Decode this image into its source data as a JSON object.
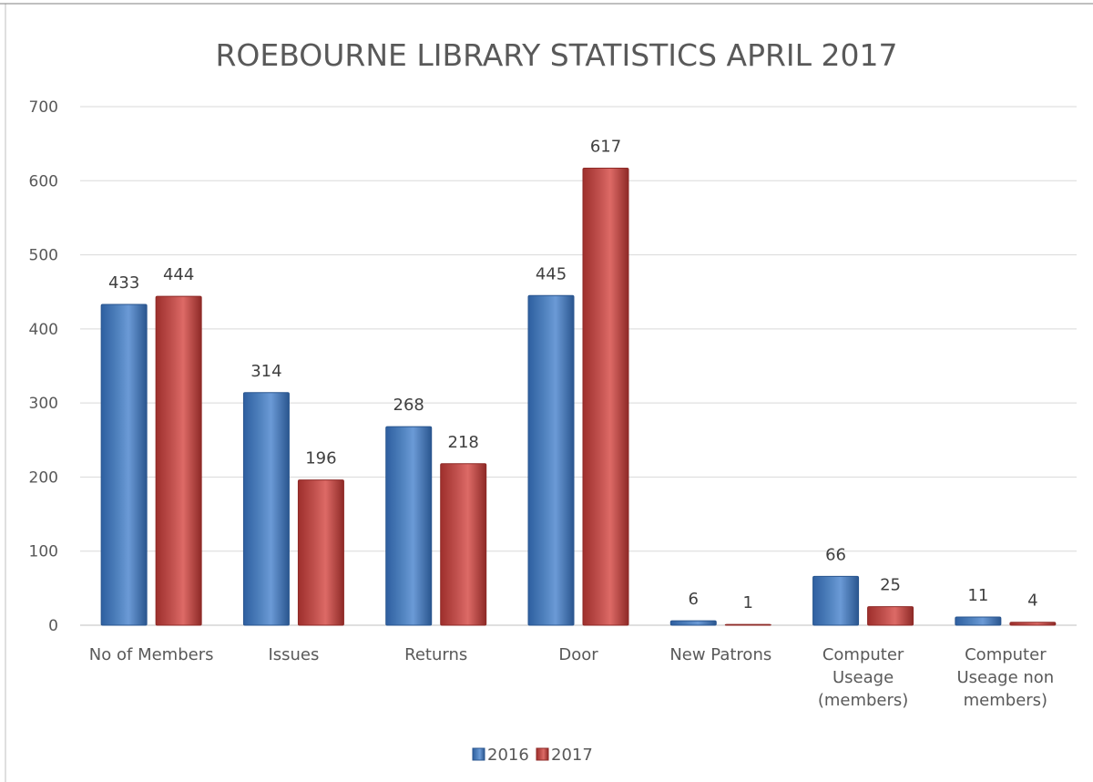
{
  "chart_data": {
    "type": "bar",
    "title": "ROEBOURNE LIBRARY STATISTICS APRIL 2017",
    "xlabel": "",
    "ylabel": "",
    "ylim": [
      0,
      700
    ],
    "y_ticks": [
      "0",
      "100",
      "200",
      "300",
      "400",
      "500",
      "600",
      "700"
    ],
    "grid": true,
    "legend_position": "bottom",
    "categories": [
      [
        "No of Members"
      ],
      [
        "Issues"
      ],
      [
        "Returns"
      ],
      [
        "Door"
      ],
      [
        "New Patrons"
      ],
      [
        "Computer",
        "Useage",
        "(members)"
      ],
      [
        "Computer",
        "Useage non",
        "members)"
      ]
    ],
    "series": [
      {
        "name": "2016",
        "color": "#4F81BD",
        "values": [
          433,
          314,
          268,
          445,
          6,
          66,
          11
        ]
      },
      {
        "name": "2017",
        "color": "#C0504D",
        "values": [
          444,
          196,
          218,
          617,
          1,
          25,
          4
        ]
      }
    ]
  }
}
